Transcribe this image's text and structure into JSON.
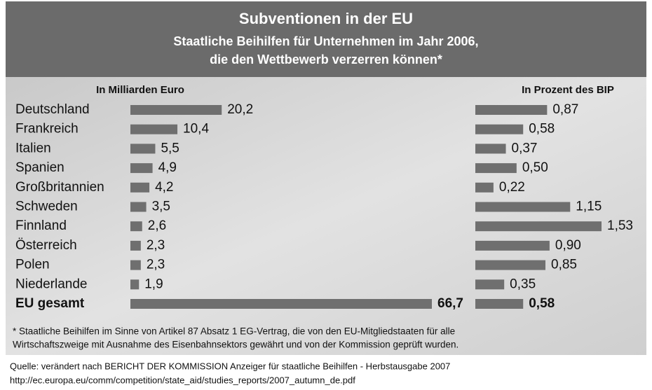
{
  "header": {
    "title": "Subventionen in der EU",
    "subtitle": [
      "Staatliche Beihilfen für Unternehmen im Jahr 2006,",
      "die den Wettbewerb verzerren können*"
    ]
  },
  "chart_data": [
    {
      "type": "bar",
      "orientation": "horizontal",
      "axis_title": "In Milliarden Euro",
      "color": "#6f6f6f",
      "categories": [
        "Deutschland",
        "Frankreich",
        "Italien",
        "Spanien",
        "Großbritannien",
        "Schweden",
        "Finnland",
        "Österreich",
        "Polen",
        "Niederlande",
        "EU gesamt"
      ],
      "values": [
        20.2,
        10.4,
        5.5,
        4.9,
        4.2,
        3.5,
        2.6,
        2.3,
        2.3,
        1.9,
        66.7
      ],
      "value_labels": [
        "20,2",
        "10,4",
        "5,5",
        "4,9",
        "4,2",
        "3,5",
        "2,6",
        "2,3",
        "2,3",
        "1,9",
        "66,7"
      ]
    },
    {
      "type": "bar",
      "orientation": "horizontal",
      "axis_title": "In Prozent des BIP",
      "color": "#6f6f6f",
      "values": [
        0.87,
        0.58,
        0.37,
        0.5,
        0.22,
        1.15,
        1.53,
        0.9,
        0.85,
        0.35,
        0.58
      ],
      "value_labels": [
        "0,87",
        "0,58",
        "0,37",
        "0,50",
        "0,22",
        "1,15",
        "1,53",
        "0,90",
        "0,85",
        "0,35",
        "0,58"
      ]
    }
  ],
  "footnote": [
    "* Staatliche Beihilfen im Sinne von Artikel 87 Absatz 1 EG-Vertrag, die von den EU-Mitgliedstaaten für alle",
    "Wirtschaftszweige mit Ausnahme des Eisenbahnsektors gewährt und von der Kommission geprüft wurden."
  ],
  "source": [
    "Quelle: verändert nach BERICHT DER KOMMISSION Anzeiger für staatliche Beihilfen - Herbstausgabe 2007",
    "http://ec.europa.eu/comm/competition/state_aid/studies_reports/2007_autumn_de.pdf"
  ]
}
